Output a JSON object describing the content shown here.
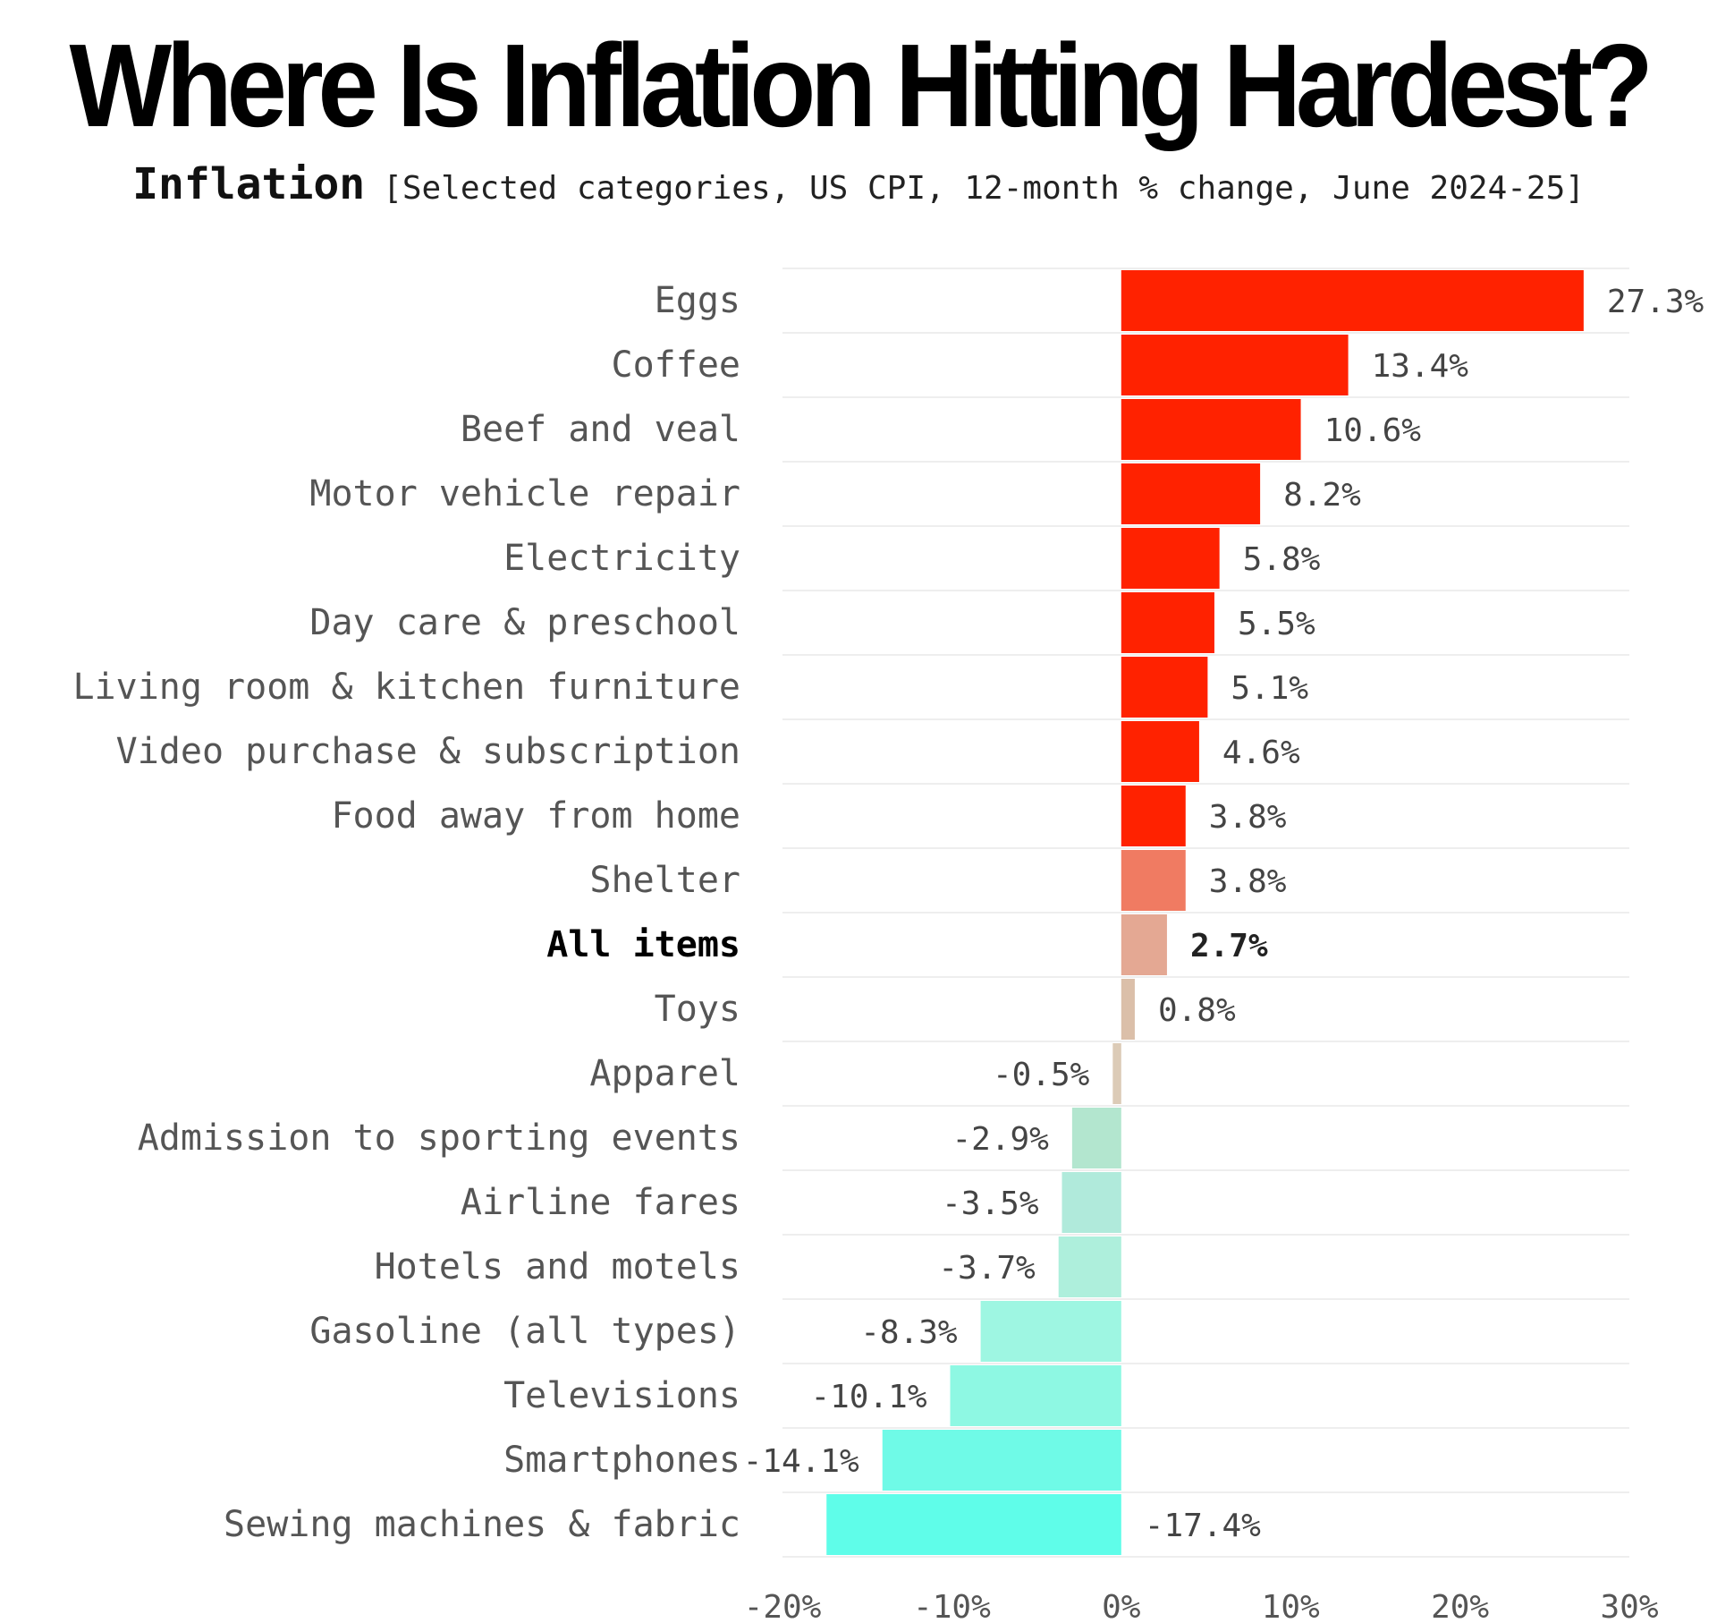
{
  "title": "Where Is Inflation Hitting Hardest?",
  "subtitle": {
    "lead": "Inflation",
    "detail": "[Selected categories, US CPI, 12-month % change, June 2024-25]"
  },
  "chart_data": {
    "type": "bar",
    "orientation": "horizontal",
    "xlim": [
      -20,
      30
    ],
    "xticks": [
      -20,
      -10,
      0,
      10,
      20,
      30
    ],
    "xtick_labels": [
      "-20%",
      "-10%",
      "0%",
      "10%",
      "20%",
      "30%"
    ],
    "grid": "horizontal row separators",
    "categories": [
      "Eggs",
      "Coffee",
      "Beef and veal",
      "Motor vehicle repair",
      "Electricity",
      "Day care & preschool",
      "Living room & kitchen furniture",
      "Video purchase & subscription",
      "Food away from home",
      "Shelter",
      "All items",
      "Toys",
      "Apparel",
      "Admission to sporting events",
      "Airline fares",
      "Hotels and motels",
      "Gasoline (all types)",
      "Televisions",
      "Smartphones",
      "Sewing machines & fabric"
    ],
    "values": [
      27.3,
      13.4,
      10.6,
      8.2,
      5.8,
      5.5,
      5.1,
      4.6,
      3.8,
      3.8,
      2.7,
      0.8,
      -0.5,
      -2.9,
      -3.5,
      -3.7,
      -8.3,
      -10.1,
      -14.1,
      -17.4
    ],
    "value_labels": [
      "27.3%",
      "13.4%",
      "10.6%",
      "8.2%",
      "5.8%",
      "5.5%",
      "5.1%",
      "4.6%",
      "3.8%",
      "3.8%",
      "2.7%",
      "0.8%",
      "-0.5%",
      "-2.9%",
      "-3.5%",
      "-3.7%",
      "-8.3%",
      "-10.1%",
      "-14.1%",
      "-17.4%"
    ],
    "bar_colors": [
      "#ff2200",
      "#ff2200",
      "#ff2200",
      "#ff2200",
      "#ff2200",
      "#ff2200",
      "#ff2200",
      "#ff2200",
      "#ff2200",
      "#f07b62",
      "#e4a893",
      "#dbbfa9",
      "#dccbb7",
      "#b3e6cf",
      "#b0eadb",
      "#aeefdc",
      "#9ef6e2",
      "#8ef8e3",
      "#6ffae7",
      "#5ffde9"
    ],
    "highlight": "All items"
  }
}
